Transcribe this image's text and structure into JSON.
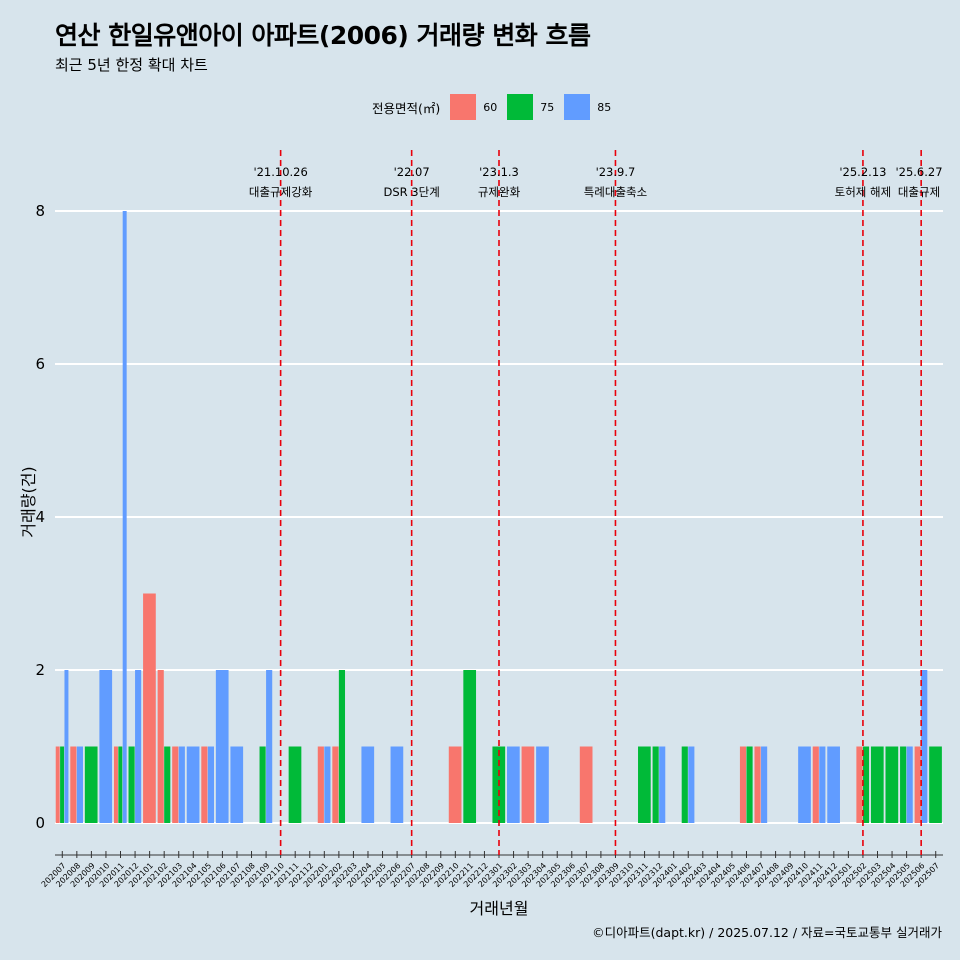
{
  "title": "연산 한일유앤아이 아파트(2006) 거래량 변화 흐름",
  "subtitle": "최근 5년 한정 확대 차트",
  "caption": "©디아파트(dapt.kr) / 2025.07.12 / 자료=국토교통부 실거래가",
  "colors": {
    "60": "#f8766d",
    "75": "#00ba38",
    "85": "#619cff",
    "background": "#d7e4ec",
    "event_line": "#e8000b"
  },
  "chart_data": {
    "type": "bar",
    "title": "연산 한일유앤아이 아파트(2006) 거래량 변화 흐름",
    "subtitle": "최근 5년 한정 확대 차트",
    "xlabel": "거래년월",
    "ylabel": "거래량(건)",
    "ylim": [
      0,
      8.4
    ],
    "yticks": [
      0,
      2,
      4,
      6,
      8
    ],
    "grid": true,
    "legend": {
      "title": "전용면적(㎡)",
      "position": "top",
      "items": [
        "60",
        "75",
        "85"
      ]
    },
    "categories": [
      "202007",
      "202008",
      "202009",
      "202010",
      "202011",
      "202012",
      "202101",
      "202102",
      "202103",
      "202104",
      "202105",
      "202106",
      "202107",
      "202108",
      "202109",
      "202110",
      "202111",
      "202112",
      "202201",
      "202202",
      "202203",
      "202204",
      "202205",
      "202206",
      "202207",
      "202208",
      "202209",
      "202210",
      "202211",
      "202212",
      "202301",
      "202302",
      "202303",
      "202304",
      "202305",
      "202306",
      "202307",
      "202308",
      "202309",
      "202310",
      "202311",
      "202312",
      "202401",
      "202402",
      "202403",
      "202404",
      "202405",
      "202406",
      "202407",
      "202408",
      "202409",
      "202410",
      "202411",
      "202412",
      "202501",
      "202502",
      "202503",
      "202504",
      "202505",
      "202506",
      "202507"
    ],
    "series": [
      {
        "name": "60",
        "values": [
          1,
          1,
          0,
          0,
          1,
          0,
          3,
          2,
          1,
          0,
          1,
          0,
          0,
          0,
          0,
          0,
          0,
          0,
          1,
          1,
          0,
          0,
          0,
          0,
          0,
          0,
          0,
          1,
          0,
          0,
          0,
          0,
          1,
          0,
          0,
          0,
          1,
          0,
          0,
          0,
          0,
          0,
          0,
          0,
          0,
          0,
          0,
          1,
          1,
          0,
          0,
          0,
          1,
          0,
          0,
          1,
          0,
          0,
          0,
          1,
          0
        ]
      },
      {
        "name": "75",
        "values": [
          1,
          0,
          1,
          0,
          1,
          1,
          0,
          1,
          0,
          0,
          0,
          0,
          0,
          0,
          1,
          0,
          1,
          0,
          0,
          2,
          0,
          0,
          0,
          0,
          0,
          0,
          0,
          0,
          2,
          0,
          1,
          0,
          0,
          0,
          0,
          0,
          0,
          0,
          0,
          0,
          1,
          1,
          0,
          1,
          0,
          0,
          0,
          1,
          0,
          0,
          0,
          0,
          0,
          0,
          0,
          1,
          1,
          1,
          1,
          0,
          1
        ]
      },
      {
        "name": "85",
        "values": [
          2,
          1,
          0,
          2,
          8,
          2,
          0,
          0,
          1,
          1,
          1,
          2,
          1,
          0,
          2,
          0,
          0,
          0,
          1,
          0,
          0,
          1,
          0,
          1,
          0,
          0,
          0,
          0,
          0,
          0,
          0,
          1,
          0,
          1,
          0,
          0,
          0,
          0,
          0,
          0,
          0,
          1,
          0,
          1,
          0,
          0,
          0,
          0,
          1,
          0,
          0,
          1,
          1,
          1,
          0,
          0,
          0,
          0,
          1,
          2,
          0
        ]
      }
    ],
    "events": [
      {
        "date": "'21.10.26",
        "name": "대출규제강화",
        "month": "202110"
      },
      {
        "date": "'22.07",
        "name": "DSR 3단계",
        "month": "202207"
      },
      {
        "date": "'23.1.3",
        "name": "규제완화",
        "month": "202301"
      },
      {
        "date": "'23.9.7",
        "name": "특례대출축소",
        "month": "202309"
      },
      {
        "date": "'25.2.13",
        "name": "토허제 해제",
        "month": "202502"
      },
      {
        "date": "'25.6.27",
        "name": "대출규제",
        "month": "202506"
      }
    ]
  }
}
